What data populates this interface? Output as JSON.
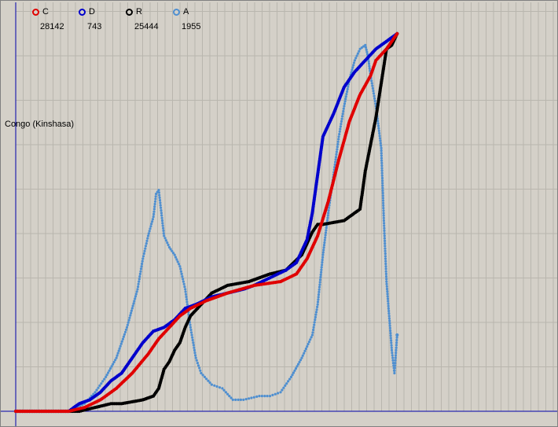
{
  "country": "Congo (Kinshasa)",
  "legend": [
    {
      "key": "C",
      "value": "28142",
      "color": "#e00000"
    },
    {
      "key": "D",
      "value": "743",
      "color": "#0000cc"
    },
    {
      "key": "R",
      "value": "25444",
      "color": "#000000"
    },
    {
      "key": "A",
      "value": "1955",
      "color": "#4f8fd0"
    }
  ],
  "chart_data": {
    "type": "scatter",
    "title": "Congo (Kinshasa)",
    "xlabel": "",
    "ylabel": "",
    "x_range": [
      0,
      1
    ],
    "y_range": [
      0,
      1
    ],
    "grid": true,
    "series": [
      {
        "name": "C",
        "color": "#e00000",
        "points": [
          [
            0.0,
            0.0
          ],
          [
            0.1,
            0.0
          ],
          [
            0.13,
            0.01
          ],
          [
            0.16,
            0.03
          ],
          [
            0.19,
            0.06
          ],
          [
            0.22,
            0.1
          ],
          [
            0.25,
            0.15
          ],
          [
            0.27,
            0.19
          ],
          [
            0.29,
            0.22
          ],
          [
            0.31,
            0.25
          ],
          [
            0.33,
            0.27
          ],
          [
            0.36,
            0.29
          ],
          [
            0.4,
            0.31
          ],
          [
            0.45,
            0.33
          ],
          [
            0.5,
            0.34
          ],
          [
            0.53,
            0.36
          ],
          [
            0.55,
            0.4
          ],
          [
            0.57,
            0.46
          ],
          [
            0.59,
            0.55
          ],
          [
            0.61,
            0.66
          ],
          [
            0.63,
            0.76
          ],
          [
            0.65,
            0.83
          ],
          [
            0.67,
            0.88
          ],
          [
            0.68,
            0.92
          ],
          [
            0.7,
            0.95
          ],
          [
            0.72,
            0.99
          ]
        ]
      },
      {
        "name": "D",
        "color": "#0000cc",
        "points": [
          [
            0.0,
            0.0
          ],
          [
            0.1,
            0.0
          ],
          [
            0.12,
            0.02
          ],
          [
            0.14,
            0.03
          ],
          [
            0.16,
            0.05
          ],
          [
            0.18,
            0.08
          ],
          [
            0.2,
            0.1
          ],
          [
            0.22,
            0.14
          ],
          [
            0.24,
            0.18
          ],
          [
            0.26,
            0.21
          ],
          [
            0.28,
            0.22
          ],
          [
            0.3,
            0.24
          ],
          [
            0.32,
            0.27
          ],
          [
            0.34,
            0.28
          ],
          [
            0.37,
            0.3
          ],
          [
            0.4,
            0.31
          ],
          [
            0.43,
            0.32
          ],
          [
            0.45,
            0.33
          ],
          [
            0.48,
            0.35
          ],
          [
            0.51,
            0.37
          ],
          [
            0.53,
            0.39
          ],
          [
            0.55,
            0.45
          ],
          [
            0.56,
            0.52
          ],
          [
            0.58,
            0.72
          ],
          [
            0.6,
            0.78
          ],
          [
            0.62,
            0.85
          ],
          [
            0.64,
            0.89
          ],
          [
            0.66,
            0.92
          ],
          [
            0.68,
            0.95
          ],
          [
            0.7,
            0.97
          ],
          [
            0.72,
            0.99
          ]
        ]
      },
      {
        "name": "R",
        "color": "#000000",
        "points": [
          [
            0.0,
            0.0
          ],
          [
            0.12,
            0.0
          ],
          [
            0.15,
            0.01
          ],
          [
            0.18,
            0.02
          ],
          [
            0.2,
            0.02
          ],
          [
            0.24,
            0.03
          ],
          [
            0.26,
            0.04
          ],
          [
            0.27,
            0.06
          ],
          [
            0.28,
            0.11
          ],
          [
            0.29,
            0.13
          ],
          [
            0.3,
            0.16
          ],
          [
            0.31,
            0.18
          ],
          [
            0.32,
            0.22
          ],
          [
            0.33,
            0.25
          ],
          [
            0.35,
            0.28
          ],
          [
            0.37,
            0.31
          ],
          [
            0.4,
            0.33
          ],
          [
            0.44,
            0.34
          ],
          [
            0.48,
            0.36
          ],
          [
            0.51,
            0.37
          ],
          [
            0.54,
            0.41
          ],
          [
            0.56,
            0.47
          ],
          [
            0.57,
            0.49
          ],
          [
            0.58,
            0.49
          ],
          [
            0.62,
            0.5
          ],
          [
            0.65,
            0.53
          ],
          [
            0.66,
            0.63
          ],
          [
            0.67,
            0.7
          ],
          [
            0.68,
            0.77
          ],
          [
            0.69,
            0.86
          ],
          [
            0.7,
            0.95
          ],
          [
            0.71,
            0.96
          ],
          [
            0.72,
            0.99
          ]
        ]
      },
      {
        "name": "A",
        "color": "#4f8fd0",
        "points": [
          [
            0.0,
            0.0
          ],
          [
            0.1,
            0.0
          ],
          [
            0.13,
            0.02
          ],
          [
            0.15,
            0.05
          ],
          [
            0.17,
            0.09
          ],
          [
            0.19,
            0.14
          ],
          [
            0.21,
            0.22
          ],
          [
            0.23,
            0.32
          ],
          [
            0.24,
            0.4
          ],
          [
            0.25,
            0.46
          ],
          [
            0.26,
            0.51
          ],
          [
            0.265,
            0.57
          ],
          [
            0.27,
            0.58
          ],
          [
            0.275,
            0.52
          ],
          [
            0.28,
            0.46
          ],
          [
            0.29,
            0.43
          ],
          [
            0.3,
            0.41
          ],
          [
            0.31,
            0.38
          ],
          [
            0.32,
            0.32
          ],
          [
            0.33,
            0.22
          ],
          [
            0.34,
            0.14
          ],
          [
            0.35,
            0.1
          ],
          [
            0.37,
            0.07
          ],
          [
            0.39,
            0.06
          ],
          [
            0.41,
            0.03
          ],
          [
            0.43,
            0.03
          ],
          [
            0.46,
            0.04
          ],
          [
            0.48,
            0.04
          ],
          [
            0.5,
            0.05
          ],
          [
            0.52,
            0.09
          ],
          [
            0.54,
            0.14
          ],
          [
            0.56,
            0.2
          ],
          [
            0.57,
            0.28
          ],
          [
            0.58,
            0.41
          ],
          [
            0.59,
            0.52
          ],
          [
            0.6,
            0.62
          ],
          [
            0.61,
            0.72
          ],
          [
            0.62,
            0.8
          ],
          [
            0.63,
            0.87
          ],
          [
            0.64,
            0.92
          ],
          [
            0.65,
            0.95
          ],
          [
            0.66,
            0.96
          ],
          [
            0.665,
            0.93
          ],
          [
            0.67,
            0.88
          ],
          [
            0.68,
            0.8
          ],
          [
            0.69,
            0.69
          ],
          [
            0.695,
            0.5
          ],
          [
            0.7,
            0.34
          ],
          [
            0.705,
            0.25
          ],
          [
            0.71,
            0.16
          ],
          [
            0.715,
            0.1
          ],
          [
            0.72,
            0.2
          ]
        ]
      }
    ]
  }
}
